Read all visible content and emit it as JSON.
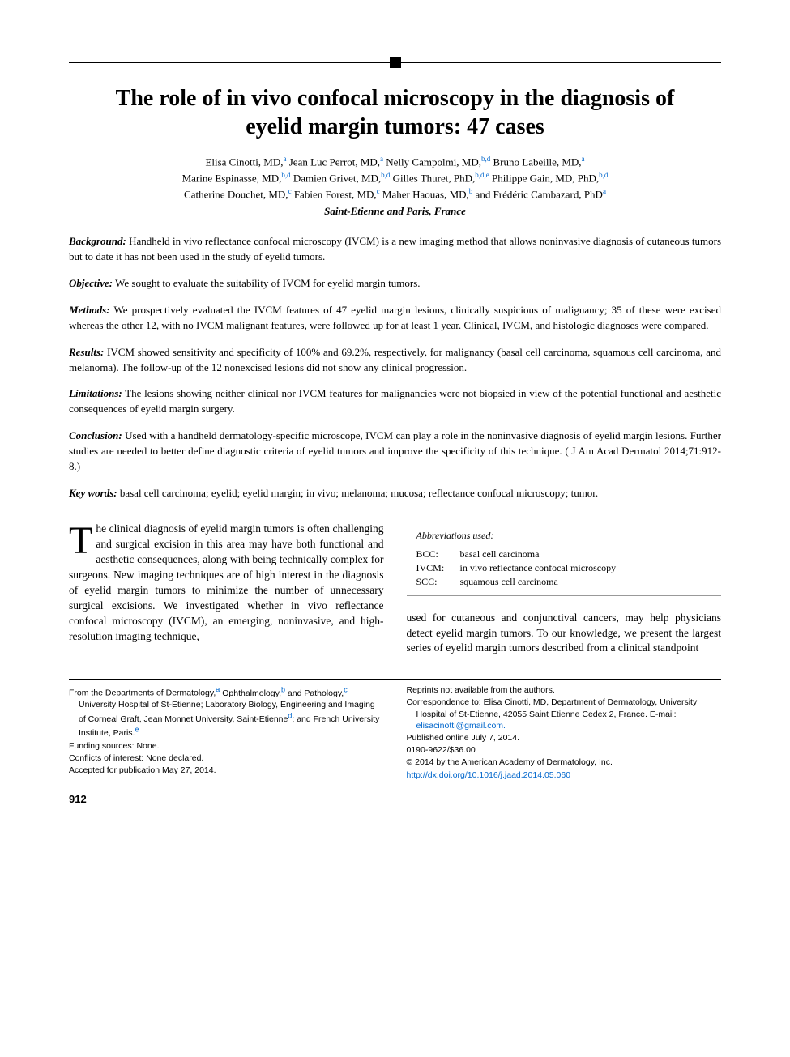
{
  "title": "The role of in vivo confocal microscopy in the diagnosis of eyelid margin tumors: 47 cases",
  "authors_html": "Elisa Cinotti, MD,<span class='sup'>a</span> Jean Luc Perrot, MD,<span class='sup'>a</span> Nelly Campolmi, MD,<span class='sup'>b,d</span> Bruno Labeille, MD,<span class='sup'>a</span><br>Marine Espinasse, MD,<span class='sup'>b,d</span> Damien Grivet, MD,<span class='sup'>b,d</span> Gilles Thuret, PhD,<span class='sup'>b,d,e</span> Philippe Gain, MD, PhD,<span class='sup'>b,d</span><br>Catherine Douchet, MD,<span class='sup'>c</span> Fabien Forest, MD,<span class='sup'>c</span> Maher Haouas, MD,<span class='sup'>b</span> and Frédéric Cambazard, PhD<span class='sup'>a</span>",
  "location": "Saint-Etienne and Paris, France",
  "abstract": {
    "background": {
      "label": "Background:",
      "text": " Handheld in vivo reflectance confocal microscopy (IVCM) is a new imaging method that allows noninvasive diagnosis of cutaneous tumors but to date it has not been used in the study of eyelid tumors."
    },
    "objective": {
      "label": "Objective:",
      "text": " We sought to evaluate the suitability of IVCM for eyelid margin tumors."
    },
    "methods": {
      "label": "Methods:",
      "text": " We prospectively evaluated the IVCM features of 47 eyelid margin lesions, clinically suspicious of malignancy; 35 of these were excised whereas the other 12, with no IVCM malignant features, were followed up for at least 1 year. Clinical, IVCM, and histologic diagnoses were compared."
    },
    "results": {
      "label": "Results:",
      "text": " IVCM showed sensitivity and specificity of 100% and 69.2%, respectively, for malignancy (basal cell carcinoma, squamous cell carcinoma, and melanoma). The follow-up of the 12 nonexcised lesions did not show any clinical progression."
    },
    "limitations": {
      "label": "Limitations:",
      "text": " The lesions showing neither clinical nor IVCM features for malignancies were not biopsied in view of the potential functional and aesthetic consequences of eyelid margin surgery."
    },
    "conclusion": {
      "label": "Conclusion:",
      "text": " Used with a handheld dermatology-specific microscope, IVCM can play a role in the noninvasive diagnosis of eyelid margin lesions. Further studies are needed to better define diagnostic criteria of eyelid tumors and improve the specificity of this technique. ( J Am Acad Dermatol 2014;71:912-8.)"
    },
    "keywords": {
      "label": "Key words:",
      "text": " basal cell carcinoma; eyelid; eyelid margin; in vivo; melanoma; mucosa; reflectance confocal microscopy; tumor."
    }
  },
  "body": {
    "col1_dropcap": "T",
    "col1": "he clinical diagnosis of eyelid margin tumors is often challenging and surgical excision in this area may have both functional and aesthetic consequences, along with being technically complex for surgeons. New imaging techniques are of high interest in the diagnosis of eyelid margin tumors to minimize the number of unnecessary surgical excisions. We investigated whether in vivo reflectance confocal microscopy (IVCM), an emerging, noninvasive, and high-resolution imaging technique,",
    "col2": "used for cutaneous and conjunctival cancers, may help physicians detect eyelid margin tumors. To our knowledge, we present the largest series of eyelid margin tumors described from a clinical standpoint"
  },
  "abbrev": {
    "title": "Abbreviations used:",
    "items": [
      {
        "key": "BCC:",
        "val": "basal cell carcinoma"
      },
      {
        "key": "IVCM:",
        "val": "in vivo reflectance confocal microscopy"
      },
      {
        "key": "SCC:",
        "val": "squamous cell carcinoma"
      }
    ]
  },
  "footnotes": {
    "left": {
      "from_prefix": "From the Departments of Dermatology,",
      "from_rest": " Ophthalmology,<span class='sup'>b</span> and Pathology,<span class='sup'>c</span> University Hospital of St-Etienne; Laboratory Biology, Engineering and Imaging of Corneal Graft, Jean Monnet University, Saint-Etienne<span class='sup'>d</span>; and French University Institute, Paris.<span class='sup'>e</span>",
      "from_sup_a": "a",
      "funding": "Funding sources: None.",
      "conflicts": "Conflicts of interest: None declared.",
      "accepted": "Accepted for publication May 27, 2014."
    },
    "right": {
      "reprints": "Reprints not available from the authors.",
      "corr_prefix": "Correspondence to: Elisa Cinotti, MD, Department of Dermatology, University Hospital of St-Etienne, 42055 Saint Etienne Cedex 2, France. E-mail: ",
      "corr_email": "elisacinotti@gmail.com.",
      "published": "Published online July 7, 2014.",
      "code": "0190-9622/$36.00",
      "copyright": "© 2014 by the American Academy of Dermatology, Inc.",
      "doi": "http://dx.doi.org/10.1016/j.jaad.2014.05.060"
    }
  },
  "page_number": "912",
  "colors": {
    "link": "#0066cc",
    "text": "#000000",
    "rule": "#000000"
  }
}
